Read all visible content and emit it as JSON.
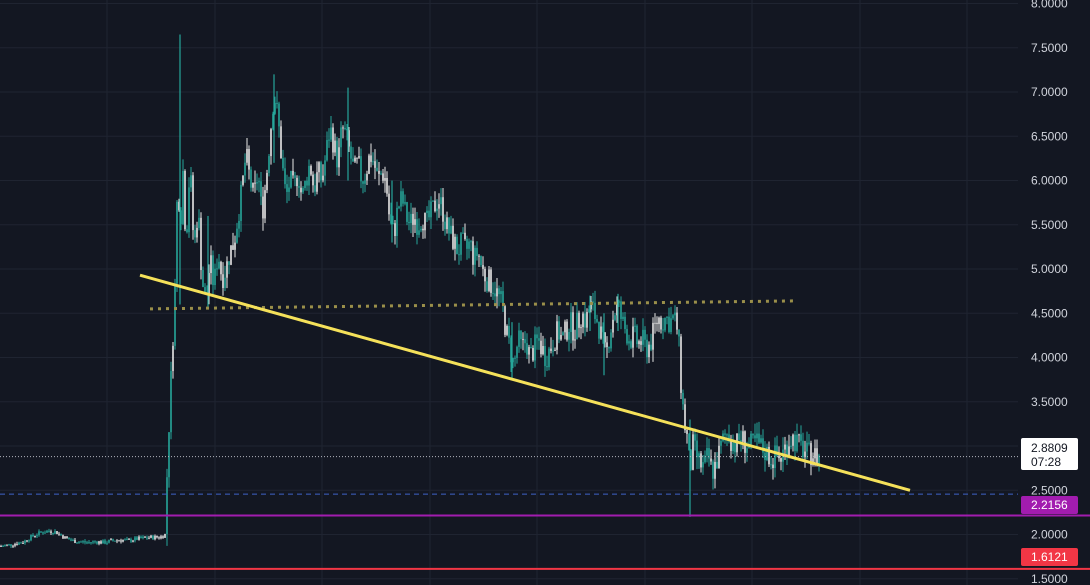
{
  "colors": {
    "background": "#131722",
    "grid": "#1f2431",
    "candle": "#26a69a",
    "wick_white": "#e8e8e8",
    "trendline": "#f5e15a",
    "resistance_dotted": "#9a8f4a",
    "blue_dashed": "#3f63c8",
    "purple_level": "#a21caf",
    "red_level": "#f23645",
    "current_price_line": "#b2b5be"
  },
  "chart_data": {
    "type": "candlestick",
    "ylim": [
      1.43,
      8.04
    ],
    "y_ticks": [
      "1.5000",
      "2.0000",
      "2.5000",
      "3.0000",
      "3.5000",
      "4.0000",
      "4.5000",
      "5.0000",
      "5.5000",
      "6.0000",
      "6.5000",
      "7.0000",
      "7.5000",
      "8.0000"
    ],
    "price_path": [
      [
        0,
        1.87
      ],
      [
        8,
        1.88
      ],
      [
        16,
        1.9
      ],
      [
        24,
        1.92
      ],
      [
        32,
        1.98
      ],
      [
        40,
        2.02
      ],
      [
        48,
        2.04
      ],
      [
        56,
        2.03
      ],
      [
        64,
        1.97
      ],
      [
        72,
        1.93
      ],
      [
        80,
        1.92
      ],
      [
        88,
        1.91
      ],
      [
        96,
        1.92
      ],
      [
        104,
        1.91
      ],
      [
        112,
        1.93
      ],
      [
        120,
        1.94
      ],
      [
        128,
        1.93
      ],
      [
        136,
        1.95
      ],
      [
        144,
        1.96
      ],
      [
        152,
        1.97
      ],
      [
        160,
        1.97
      ],
      [
        165,
        2.0
      ],
      [
        168,
        3.0
      ],
      [
        172,
        4.0
      ],
      [
        175,
        4.8
      ],
      [
        178,
        6.2
      ],
      [
        180,
        5.4
      ],
      [
        183,
        6.1
      ],
      [
        186,
        5.3
      ],
      [
        190,
        6.2
      ],
      [
        194,
        5.2
      ],
      [
        198,
        5.7
      ],
      [
        202,
        4.9
      ],
      [
        206,
        4.6
      ],
      [
        210,
        5.1
      ],
      [
        214,
        4.8
      ],
      [
        218,
        5.2
      ],
      [
        222,
        4.9
      ],
      [
        226,
        5.0
      ],
      [
        230,
        5.2
      ],
      [
        234,
        5.3
      ],
      [
        238,
        5.6
      ],
      [
        242,
        5.9
      ],
      [
        246,
        6.3
      ],
      [
        250,
        6.0
      ],
      [
        254,
        5.8
      ],
      [
        258,
        6.1
      ],
      [
        262,
        5.6
      ],
      [
        266,
        6.0
      ],
      [
        270,
        6.5
      ],
      [
        274,
        7.0
      ],
      [
        278,
        6.7
      ],
      [
        282,
        6.2
      ],
      [
        286,
        5.8
      ],
      [
        290,
        6.0
      ],
      [
        294,
        5.9
      ],
      [
        298,
        6.1
      ],
      [
        302,
        5.8
      ],
      [
        306,
        6.0
      ],
      [
        310,
        6.2
      ],
      [
        314,
        5.9
      ],
      [
        318,
        6.1
      ],
      [
        322,
        6.0
      ],
      [
        326,
        6.3
      ],
      [
        330,
        6.6
      ],
      [
        334,
        6.4
      ],
      [
        338,
        6.2
      ],
      [
        342,
        6.6
      ],
      [
        346,
        6.5
      ],
      [
        350,
        6.3
      ],
      [
        354,
        6.1
      ],
      [
        358,
        6.2
      ],
      [
        362,
        6.0
      ],
      [
        366,
        6.1
      ],
      [
        370,
        6.3
      ],
      [
        374,
        6.2
      ],
      [
        378,
        6.0
      ],
      [
        382,
        6.1
      ],
      [
        386,
        6.0
      ],
      [
        390,
        5.5
      ],
      [
        394,
        5.4
      ],
      [
        398,
        5.7
      ],
      [
        402,
        5.8
      ],
      [
        406,
        5.6
      ],
      [
        410,
        5.5
      ],
      [
        414,
        5.6
      ],
      [
        418,
        5.5
      ],
      [
        422,
        5.6
      ],
      [
        426,
        5.5
      ],
      [
        430,
        5.6
      ],
      [
        434,
        5.7
      ],
      [
        438,
        5.8
      ],
      [
        442,
        5.7
      ],
      [
        446,
        5.5
      ],
      [
        450,
        5.4
      ],
      [
        454,
        5.3
      ],
      [
        458,
        5.2
      ],
      [
        462,
        5.3
      ],
      [
        466,
        5.2
      ],
      [
        470,
        5.3
      ],
      [
        474,
        5.1
      ],
      [
        478,
        5.2
      ],
      [
        482,
        5.0
      ],
      [
        486,
        4.9
      ],
      [
        490,
        4.85
      ],
      [
        494,
        4.8
      ],
      [
        498,
        4.7
      ],
      [
        502,
        4.6
      ],
      [
        506,
        4.3
      ],
      [
        510,
        4.1
      ],
      [
        514,
        3.9
      ],
      [
        518,
        4.2
      ],
      [
        522,
        4.1
      ],
      [
        526,
        4.2
      ],
      [
        530,
        4.0
      ],
      [
        534,
        4.1
      ],
      [
        538,
        4.2
      ],
      [
        542,
        4.1
      ],
      [
        546,
        4.0
      ],
      [
        550,
        4.1
      ],
      [
        554,
        4.2
      ],
      [
        558,
        4.3
      ],
      [
        562,
        4.2
      ],
      [
        566,
        4.3
      ],
      [
        570,
        4.4
      ],
      [
        574,
        4.3
      ],
      [
        578,
        4.4
      ],
      [
        582,
        4.5
      ],
      [
        586,
        4.4
      ],
      [
        590,
        4.6
      ],
      [
        594,
        4.5
      ],
      [
        598,
        4.4
      ],
      [
        602,
        4.2
      ],
      [
        606,
        4.0
      ],
      [
        610,
        4.3
      ],
      [
        614,
        4.5
      ],
      [
        618,
        4.6
      ],
      [
        622,
        4.4
      ],
      [
        626,
        4.3
      ],
      [
        630,
        4.2
      ],
      [
        634,
        4.25
      ],
      [
        638,
        4.15
      ],
      [
        642,
        4.2
      ],
      [
        646,
        4.1
      ],
      [
        650,
        4.15
      ],
      [
        654,
        4.3
      ],
      [
        658,
        4.45
      ],
      [
        662,
        4.4
      ],
      [
        666,
        4.45
      ],
      [
        670,
        4.4
      ],
      [
        674,
        4.45
      ],
      [
        678,
        4.3
      ],
      [
        681,
        3.7
      ],
      [
        684,
        3.3
      ],
      [
        687,
        3.1
      ],
      [
        690,
        2.7
      ],
      [
        693,
        3.0
      ],
      [
        696,
        2.9
      ],
      [
        700,
        2.8
      ],
      [
        704,
        2.75
      ],
      [
        708,
        2.9
      ],
      [
        712,
        2.7
      ],
      [
        716,
        2.8
      ],
      [
        720,
        2.95
      ],
      [
        724,
        3.1
      ],
      [
        728,
        3.15
      ],
      [
        732,
        3.05
      ],
      [
        736,
        3.0
      ],
      [
        740,
        3.1
      ],
      [
        744,
        3.05
      ],
      [
        748,
        3.0
      ],
      [
        752,
        3.0
      ],
      [
        756,
        3.05
      ],
      [
        760,
        3.0
      ],
      [
        764,
        2.95
      ],
      [
        768,
        2.9
      ],
      [
        772,
        2.85
      ],
      [
        776,
        2.9
      ],
      [
        780,
        2.85
      ],
      [
        784,
        2.95
      ],
      [
        788,
        3.05
      ],
      [
        792,
        3.1
      ],
      [
        796,
        3.05
      ],
      [
        800,
        3.0
      ],
      [
        804,
        2.95
      ],
      [
        808,
        2.9
      ],
      [
        812,
        2.92
      ],
      [
        816,
        2.88
      ],
      [
        820,
        2.88
      ]
    ],
    "spikes": [
      {
        "x": 180,
        "high": 7.65,
        "low": 4.6
      },
      {
        "x": 274,
        "high": 7.2,
        "low": 6.2
      },
      {
        "x": 348,
        "high": 7.05,
        "low": 6.0
      },
      {
        "x": 208,
        "high": 5.6,
        "low": 4.55
      },
      {
        "x": 392,
        "high": 6.0,
        "low": 5.3
      },
      {
        "x": 512,
        "high": 4.4,
        "low": 3.75
      },
      {
        "x": 690,
        "high": 3.3,
        "low": 2.2
      },
      {
        "x": 604,
        "high": 4.5,
        "low": 3.8
      },
      {
        "x": 590,
        "high": 4.7,
        "low": 4.3
      },
      {
        "x": 618,
        "high": 4.72,
        "low": 4.3
      }
    ],
    "trendline": {
      "from": [
        140,
        4.93
      ],
      "to": [
        910,
        2.5
      ]
    },
    "resistance_dotted": {
      "from": [
        150,
        4.55
      ],
      "to": [
        795,
        4.64
      ]
    },
    "levels": {
      "current_price": 2.8809,
      "blue_dashed": 2.4572,
      "purple": 2.2156,
      "red": 1.6121
    },
    "badges": {
      "current_price_label": "2.8809",
      "countdown_label": "07:28",
      "purple_label": "2.2156",
      "red_label": "1.6121"
    }
  }
}
